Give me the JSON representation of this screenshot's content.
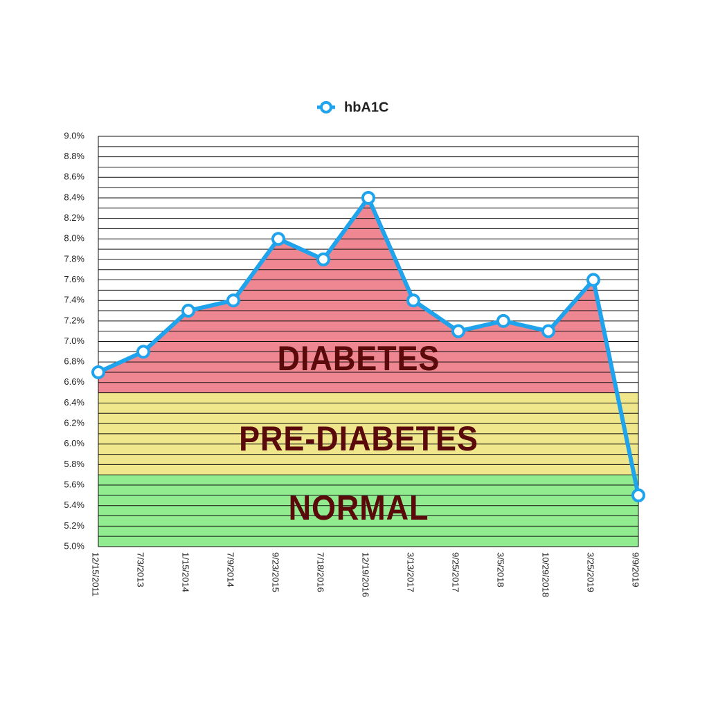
{
  "chart_data": {
    "type": "line",
    "categories": [
      "12/15/2011",
      "7/3/2013",
      "1/15/2014",
      "7/9/2014",
      "9/23/2015",
      "7/18/2016",
      "12/19/2016",
      "3/13/2017",
      "9/25/2017",
      "3/5/2018",
      "10/29/2018",
      "3/25/2019",
      "9/9/2019"
    ],
    "series": [
      {
        "name": "hbA1C",
        "color": "#1fa3ec",
        "values": [
          6.7,
          6.9,
          7.3,
          7.4,
          8.0,
          7.8,
          8.4,
          7.4,
          7.1,
          7.2,
          7.1,
          7.6,
          5.5
        ]
      }
    ],
    "ylim": [
      5.0,
      9.0
    ],
    "yticks": [
      {
        "value": 5.0,
        "label": "5.0%"
      },
      {
        "value": 5.2,
        "label": "5.2%"
      },
      {
        "value": 5.4,
        "label": "5.4%"
      },
      {
        "value": 5.6,
        "label": "5.6%"
      },
      {
        "value": 5.8,
        "label": "5.8%"
      },
      {
        "value": 6.0,
        "label": "6.0%"
      },
      {
        "value": 6.2,
        "label": "6.2%"
      },
      {
        "value": 6.4,
        "label": "6.4%"
      },
      {
        "value": 6.6,
        "label": "6.6%"
      },
      {
        "value": 6.8,
        "label": "6.8%"
      },
      {
        "value": 7.0,
        "label": "7.0%"
      },
      {
        "value": 7.2,
        "label": "7.2%"
      },
      {
        "value": 7.4,
        "label": "7.4%"
      },
      {
        "value": 7.6,
        "label": "7.6%"
      },
      {
        "value": 7.8,
        "label": "7.8%"
      },
      {
        "value": 8.0,
        "label": "8.0%"
      },
      {
        "value": 8.2,
        "label": "8.2%"
      },
      {
        "value": 8.4,
        "label": "8.4%"
      },
      {
        "value": 8.6,
        "label": "8.6%"
      },
      {
        "value": 8.8,
        "label": "8.8%"
      },
      {
        "value": 9.0,
        "label": "9.0%"
      }
    ],
    "minor_yticks": [
      5.1,
      5.3,
      5.5,
      5.7,
      5.9,
      6.1,
      6.3,
      6.5,
      6.7,
      6.9,
      7.1,
      7.3,
      7.5,
      7.7,
      7.9,
      8.1,
      8.3,
      8.5,
      8.7,
      8.9
    ],
    "grid": true,
    "legend": "top",
    "bands": [
      {
        "label": "NORMAL",
        "from": 5.0,
        "to": 5.7,
        "color": "#90ec8e"
      },
      {
        "label": "PRE-DIABETES",
        "from": 5.7,
        "to": 6.5,
        "color": "#f0e68c"
      },
      {
        "label": "DIABETES",
        "from": 6.5,
        "to": 9.0,
        "color": "#ee8791",
        "under_line": true
      }
    ]
  }
}
